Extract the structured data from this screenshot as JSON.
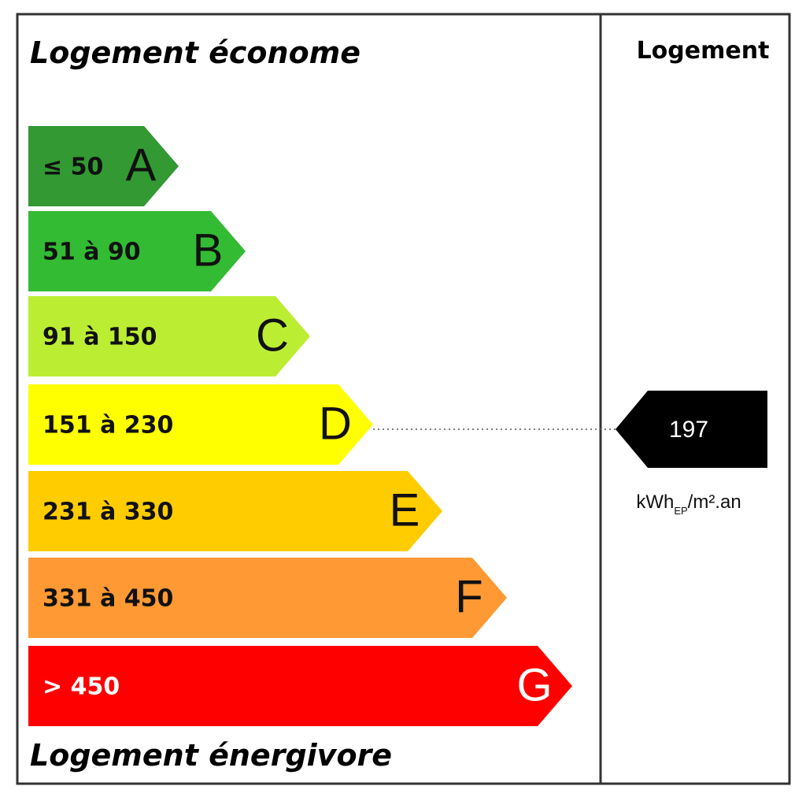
{
  "header": {
    "title": "Logement économe",
    "column_title": "Logement"
  },
  "footer": {
    "title": "Logement énergivore"
  },
  "bands": [
    {
      "range": "≤ 50",
      "letter": "A",
      "color": "#339933"
    },
    {
      "range": "51 à 90",
      "letter": "B",
      "color": "#33bb33"
    },
    {
      "range": "91 à 150",
      "letter": "C",
      "color": "#bbee33"
    },
    {
      "range": "151 à 230",
      "letter": "D",
      "color": "#ffff00"
    },
    {
      "range": "231 à 330",
      "letter": "E",
      "color": "#ffcc00"
    },
    {
      "range": "331 à 450",
      "letter": "F",
      "color": "#ff9933"
    },
    {
      "range": "> 450",
      "letter": "G",
      "color": "#ff0000"
    }
  ],
  "indicator": {
    "value": "197",
    "band": 3,
    "unit": {
      "main": "kWh",
      "sub": "EP",
      "rest": "/m².an"
    }
  }
}
